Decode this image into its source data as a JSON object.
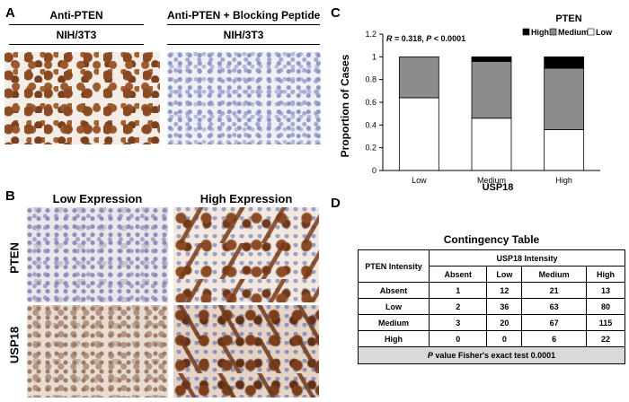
{
  "panel_a": {
    "label": "A",
    "left_header": "Anti-PTEN",
    "left_sub": "NIH/3T3",
    "right_header": "Anti-PTEN + Blocking Peptide",
    "right_sub": "NIH/3T3"
  },
  "panel_b": {
    "label": "B",
    "col_low": "Low Expression",
    "col_high": "High Expression",
    "row_pten": "PTEN",
    "row_usp18": "USP18"
  },
  "panel_c": {
    "label": "C",
    "annotation": "R = 0.318, P < 0.0001",
    "legend_title": "PTEN",
    "legend_labels": [
      "High",
      "Medium",
      "Low"
    ],
    "xlabel": "USP18",
    "ylabel": "Proportion of Cases",
    "ytick_labels": [
      "0",
      "0.2",
      "0.4",
      "0.6",
      "0.8",
      "1",
      "1.2"
    ]
  },
  "chart_data": {
    "type": "bar",
    "stacked": true,
    "categories": [
      "Low",
      "Medium",
      "High"
    ],
    "series": [
      {
        "name": "Low",
        "values": [
          0.64,
          0.46,
          0.36
        ],
        "color": "#ffffff"
      },
      {
        "name": "Medium",
        "values": [
          0.36,
          0.5,
          0.54
        ],
        "color": "#8c8c8c"
      },
      {
        "name": "High",
        "values": [
          0.0,
          0.04,
          0.1
        ],
        "color": "#000000"
      }
    ],
    "title": "PTEN",
    "xlabel": "USP18",
    "ylabel": "Proportion of Cases",
    "ylim": [
      0,
      1.2
    ],
    "yticks": [
      0,
      0.2,
      0.4,
      0.6,
      0.8,
      1,
      1.2
    ],
    "legend_position": "top-right",
    "annotation": "R = 0.318, P < 0.0001"
  },
  "panel_d": {
    "label": "D",
    "title": "Contingency Table",
    "row_header": "PTEN Intensity",
    "col_group": "USP18 Intensity",
    "columns": [
      "Absent",
      "Low",
      "Medium",
      "High"
    ],
    "rows": [
      {
        "label": "Absent",
        "values": [
          "1",
          "12",
          "21",
          "13"
        ]
      },
      {
        "label": "Low",
        "values": [
          "2",
          "36",
          "63",
          "80"
        ]
      },
      {
        "label": "Medium",
        "values": [
          "3",
          "20",
          "67",
          "115"
        ]
      },
      {
        "label": "High",
        "values": [
          "0",
          "0",
          "6",
          "22"
        ]
      }
    ],
    "footer_p": "P",
    "footer_text": " value Fisher's exact test  0.0001"
  }
}
